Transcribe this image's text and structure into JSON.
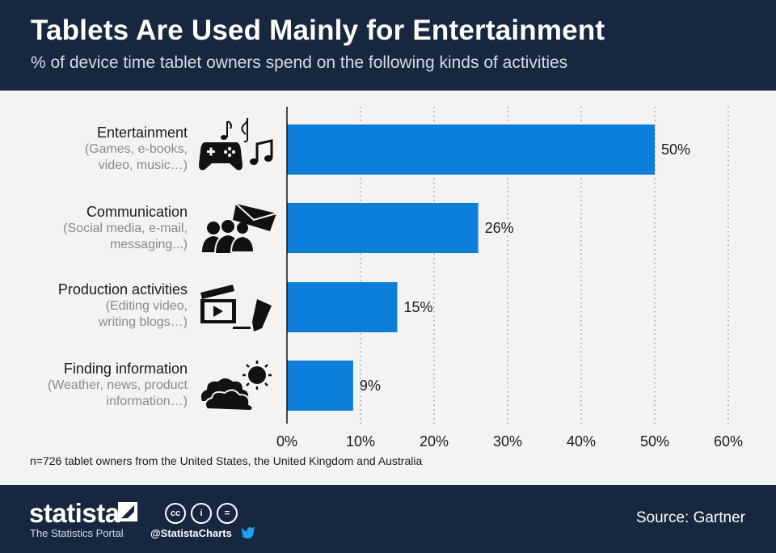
{
  "header": {
    "title": "Tablets Are Used Mainly for Entertainment",
    "subtitle": "% of device time tablet owners spend on the following kinds of activities"
  },
  "categories": [
    {
      "name": "Entertainment",
      "desc1": "(Games, e-books,",
      "desc2": "video, music…)",
      "icon": "gamepad-music-icon"
    },
    {
      "name": "Communication",
      "desc1": "(Social media, e-mail,",
      "desc2": "messaging...)",
      "icon": "people-envelope-icon"
    },
    {
      "name": "Production activities",
      "desc1": "(Editing video,",
      "desc2": "writing blogs…)",
      "icon": "clapperboard-pen-icon"
    },
    {
      "name": "Finding information",
      "desc1": "(Weather, news, product",
      "desc2": "information…)",
      "icon": "cloud-sun-icon"
    }
  ],
  "chart_data": {
    "type": "bar",
    "orientation": "horizontal",
    "title": "Tablets Are Used Mainly for Entertainment",
    "subtitle": "% of device time tablet owners spend on the following kinds of activities",
    "categories": [
      "Entertainment",
      "Communication",
      "Production activities",
      "Finding information"
    ],
    "values": [
      50,
      26,
      15,
      9
    ],
    "value_labels": [
      "50%",
      "26%",
      "15%",
      "9%"
    ],
    "xlim": [
      0,
      60
    ],
    "xticks": [
      0,
      10,
      20,
      30,
      40,
      50,
      60
    ],
    "xtick_labels": [
      "0%",
      "10%",
      "20%",
      "30%",
      "40%",
      "50%",
      "60%"
    ],
    "grid": "vertical dotted",
    "bar_color": "#0d7fdb"
  },
  "footnote": "n=726 tablet owners from the United States, the United Kingdom and Australia",
  "footer": {
    "brand": "statista",
    "portal": "The Statistics Portal",
    "handle": "@StatistaCharts",
    "cc_labels": [
      "cc",
      "i",
      "="
    ],
    "source": "Source: Gartner"
  },
  "colors": {
    "header_bg": "#17273f",
    "bar": "#0d7fdb",
    "background": "#f3f3f3"
  }
}
